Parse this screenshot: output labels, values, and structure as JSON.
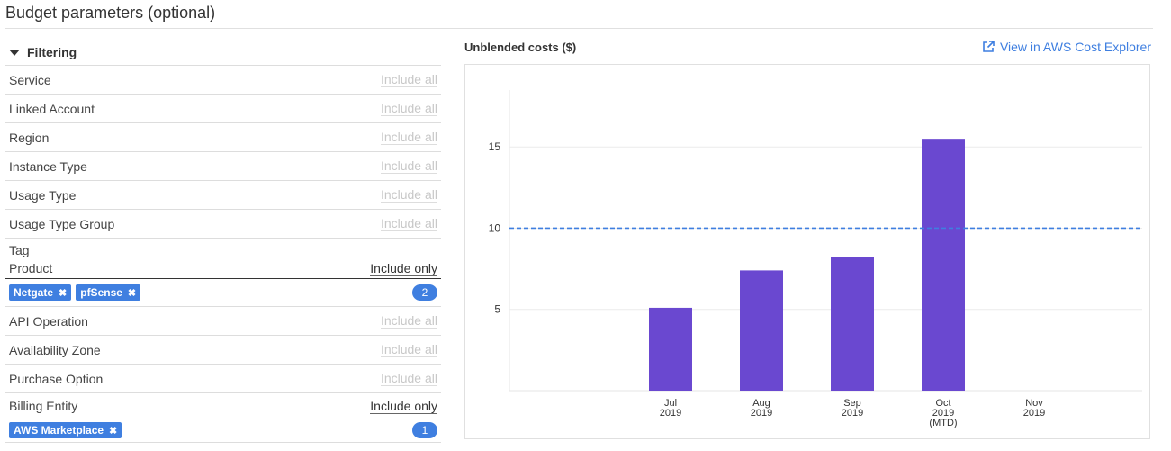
{
  "page_title": "Budget parameters (optional)",
  "filtering": {
    "header": "Filtering",
    "rows_top": [
      {
        "name": "Service",
        "link": "Include all"
      },
      {
        "name": "Linked Account",
        "link": "Include all"
      },
      {
        "name": "Region",
        "link": "Include all"
      },
      {
        "name": "Instance Type",
        "link": "Include all"
      },
      {
        "name": "Usage Type",
        "link": "Include all"
      },
      {
        "name": "Usage Type Group",
        "link": "Include all"
      }
    ],
    "tag": {
      "label": "Tag",
      "key": "Product",
      "mode": "Include only",
      "chips": [
        "Netgate",
        "pfSense"
      ],
      "count": "2"
    },
    "rows_bottom": [
      {
        "name": "API Operation",
        "link": "Include all"
      },
      {
        "name": "Availability Zone",
        "link": "Include all"
      },
      {
        "name": "Purchase Option",
        "link": "Include all"
      }
    ],
    "billing": {
      "name": "Billing Entity",
      "mode": "Include only",
      "chips": [
        "AWS Marketplace"
      ],
      "count": "1"
    }
  },
  "chart_panel": {
    "title": "Unblended costs ($)",
    "cost_explorer_link": "View in AWS Cost Explorer"
  },
  "chart_data": {
    "type": "bar",
    "title": "Unblended costs ($)",
    "categories": [
      {
        "label": [
          "Jul",
          "2019"
        ]
      },
      {
        "label": [
          "Aug",
          "2019"
        ]
      },
      {
        "label": [
          "Sep",
          "2019"
        ]
      },
      {
        "label": [
          "Oct",
          "2019",
          "(MTD)"
        ]
      },
      {
        "label": [
          "Nov",
          "2019"
        ]
      }
    ],
    "values": [
      5.1,
      7.4,
      8.2,
      15.5,
      null
    ],
    "bar_color": "#6a48d0",
    "budget_line": 10,
    "budget_line_color": "#3f7fe0",
    "yticks": [
      5,
      10,
      15
    ],
    "ylim": [
      0,
      18.5
    ],
    "grid": true
  },
  "colors": {
    "accent": "#3f7fe0"
  }
}
